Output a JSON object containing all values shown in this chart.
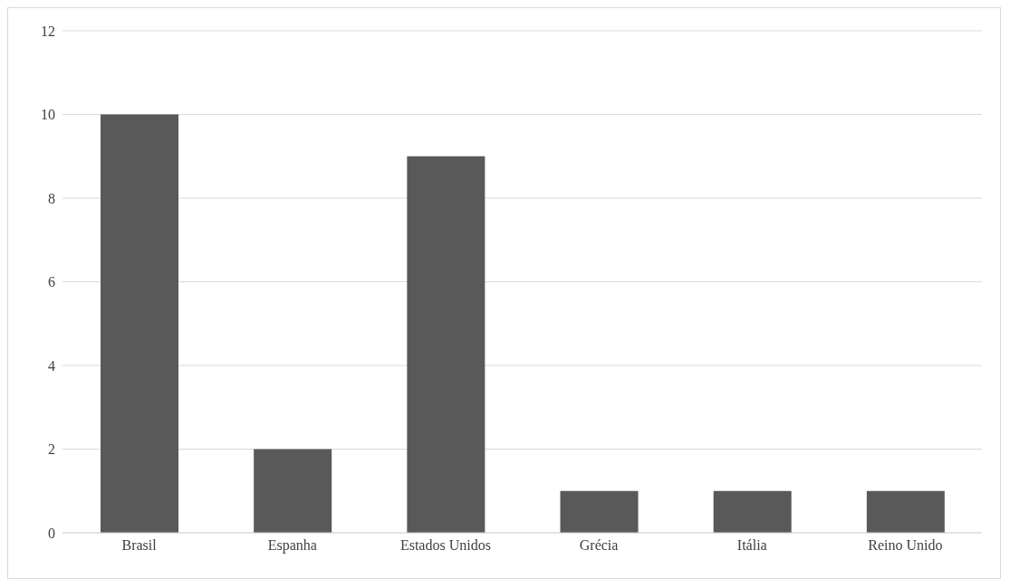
{
  "chart_data": {
    "type": "bar",
    "categories": [
      "Brasil",
      "Espanha",
      "Estados Unidos",
      "Grécia",
      "Itália",
      "Reino Unido"
    ],
    "values": [
      10,
      2,
      9,
      1,
      1,
      1
    ],
    "color": "#595959",
    "ylim": [
      0,
      12
    ],
    "yticks": [
      0,
      2,
      4,
      6,
      8,
      10,
      12
    ],
    "grid": "y"
  }
}
